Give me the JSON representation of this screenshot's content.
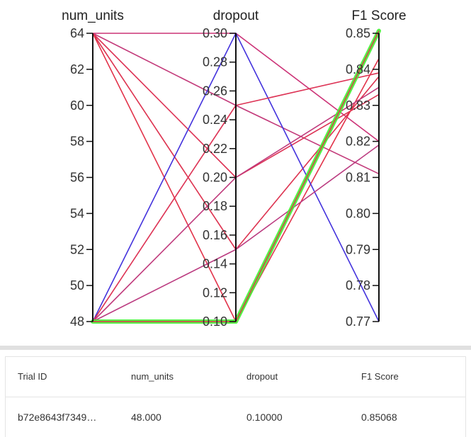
{
  "chart_data": {
    "type": "parallel_coordinates",
    "axes": [
      {
        "name": "num_units",
        "range": [
          48,
          64
        ],
        "ticks": [
          "48",
          "50",
          "52",
          "54",
          "56",
          "58",
          "60",
          "62",
          "64"
        ]
      },
      {
        "name": "dropout",
        "range": [
          0.1,
          0.3
        ],
        "ticks": [
          "0.10",
          "0.12",
          "0.14",
          "0.16",
          "0.18",
          "0.20",
          "0.22",
          "0.24",
          "0.26",
          "0.28",
          "0.30"
        ]
      },
      {
        "name": "F1 Score",
        "range": [
          0.77,
          0.85
        ],
        "ticks": [
          "0.77",
          "0.78",
          "0.79",
          "0.80",
          "0.81",
          "0.82",
          "0.83",
          "0.84",
          "0.85"
        ]
      }
    ],
    "trials": [
      {
        "num_units": 64,
        "dropout": 0.3,
        "f1": 0.82,
        "color": "#cc3377"
      },
      {
        "num_units": 64,
        "dropout": 0.25,
        "f1": 0.811,
        "color": "#c33a7a"
      },
      {
        "num_units": 64,
        "dropout": 0.2,
        "f1": 0.833,
        "color": "#dd3355"
      },
      {
        "num_units": 64,
        "dropout": 0.15,
        "f1": 0.838,
        "color": "#dd3350"
      },
      {
        "num_units": 64,
        "dropout": 0.1,
        "f1": 0.843,
        "color": "#e2334a"
      },
      {
        "num_units": 48,
        "dropout": 0.3,
        "f1": 0.77,
        "color": "#4433dd"
      },
      {
        "num_units": 48,
        "dropout": 0.25,
        "f1": 0.839,
        "color": "#dd3355"
      },
      {
        "num_units": 48,
        "dropout": 0.2,
        "f1": 0.835,
        "color": "#c03a7c"
      },
      {
        "num_units": 48,
        "dropout": 0.15,
        "f1": 0.819,
        "color": "#bb3b80"
      },
      {
        "num_units": 48,
        "dropout": 0.1,
        "f1": 0.85068,
        "color": "#e2334a"
      }
    ],
    "highlight_index": 9,
    "highlight_color": "#44ee33"
  },
  "table": {
    "headers": [
      "Trial ID",
      "num_units",
      "dropout",
      "F1 Score"
    ],
    "rows": [
      [
        "b72e8643f7349…",
        "48.000",
        "0.10000",
        "0.85068"
      ]
    ]
  }
}
